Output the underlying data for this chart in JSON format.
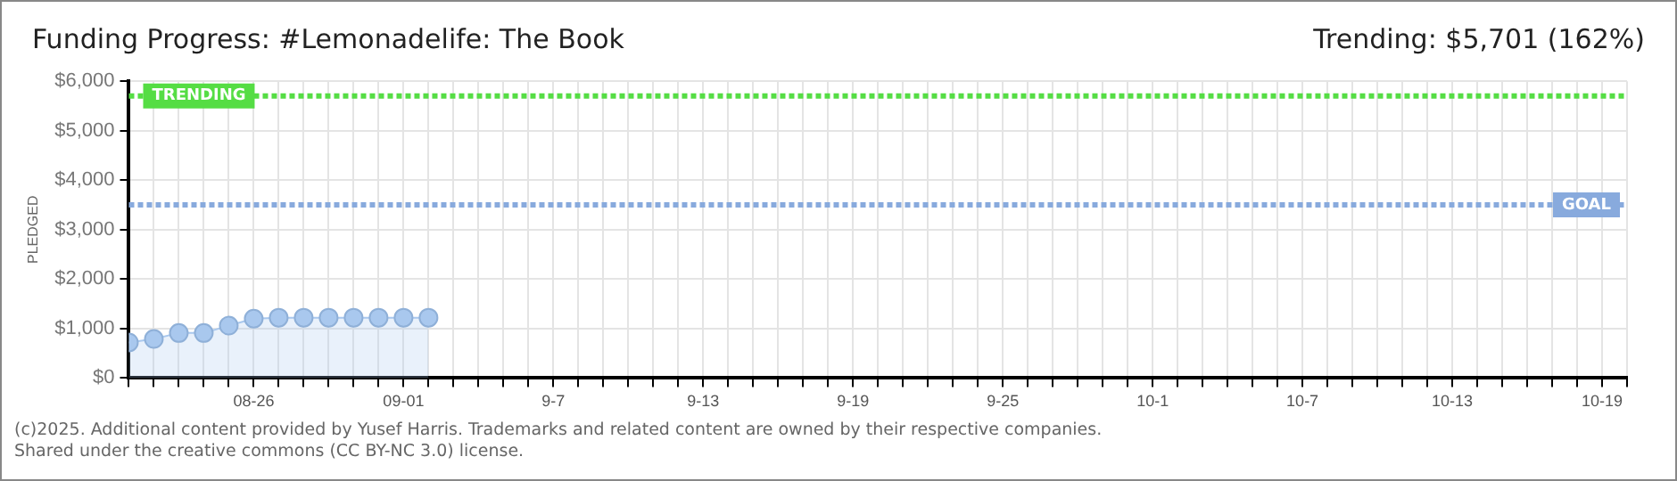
{
  "chart_data": {
    "type": "area",
    "title": "Funding Progress: #Lemonadelife: The Book",
    "subtitle": "Trending: $5,701 (162%)",
    "ylabel": "PLEDGED",
    "annotations": [
      "(c)2025. Additional content provided by Yusef Harris. Trademarks and related content are owned by their respective companies.",
      "Shared under the creative commons (CC BY-NC 3.0) license."
    ],
    "x": [
      "--08-21",
      "--08-22",
      "--08-23",
      "--08-24",
      "--08-25",
      "--08-26",
      "--08-27",
      "--08-28",
      "--08-29",
      "--08-30",
      "--08-31",
      "--09-01",
      "--09-02"
    ],
    "series": [
      {
        "color": "#a9c8ee",
        "values": [
          720,
          790,
          910,
          910,
          1060,
          1200,
          1220,
          1220,
          1220,
          1220,
          1220,
          1220,
          1220
        ]
      }
    ],
    "marker": "circle",
    "grid": true,
    "legend": false,
    "ylim": [
      0,
      6000
    ],
    "yticks": [
      {
        "value": 0,
        "label": "$0"
      },
      {
        "value": 1000,
        "label": "$1,000"
      },
      {
        "value": 2000,
        "label": "$2,000"
      },
      {
        "value": 3000,
        "label": "$3,000"
      },
      {
        "value": 4000,
        "label": "$4,000"
      },
      {
        "value": 5000,
        "label": "$5,000"
      },
      {
        "value": 6000,
        "label": "$6,000"
      }
    ],
    "xlim": [
      "--08-21",
      "--10-20"
    ],
    "xticks": [
      {
        "value": "--08-21",
        "label": null
      },
      {
        "value": "--08-22",
        "label": null
      },
      {
        "value": "--08-23",
        "label": null
      },
      {
        "value": "--08-24",
        "label": null
      },
      {
        "value": "--08-25",
        "label": null
      },
      {
        "value": "--08-26",
        "label": "08-26"
      },
      {
        "value": "--08-27",
        "label": null
      },
      {
        "value": "--08-28",
        "label": null
      },
      {
        "value": "--08-29",
        "label": null
      },
      {
        "value": "--08-30",
        "label": null
      },
      {
        "value": "--08-31",
        "label": null
      },
      {
        "value": "--09-01",
        "label": "09-01"
      },
      {
        "value": "--09-02",
        "label": null
      },
      {
        "value": "--09-03",
        "label": null
      },
      {
        "value": "--09-04",
        "label": null
      },
      {
        "value": "--09-05",
        "label": null
      },
      {
        "value": "--09-06",
        "label": null
      },
      {
        "value": "--09-07",
        "label": "9-7"
      },
      {
        "value": "--09-08",
        "label": null
      },
      {
        "value": "--09-09",
        "label": null
      },
      {
        "value": "--09-10",
        "label": null
      },
      {
        "value": "--09-11",
        "label": null
      },
      {
        "value": "--09-12",
        "label": null
      },
      {
        "value": "--09-13",
        "label": "9-13"
      },
      {
        "value": "--09-14",
        "label": null
      },
      {
        "value": "--09-15",
        "label": null
      },
      {
        "value": "--09-16",
        "label": null
      },
      {
        "value": "--09-17",
        "label": null
      },
      {
        "value": "--09-18",
        "label": null
      },
      {
        "value": "--09-19",
        "label": "9-19"
      },
      {
        "value": "--09-20",
        "label": null
      },
      {
        "value": "--09-21",
        "label": null
      },
      {
        "value": "--09-22",
        "label": null
      },
      {
        "value": "--09-23",
        "label": null
      },
      {
        "value": "--09-24",
        "label": null
      },
      {
        "value": "--09-25",
        "label": "9-25"
      },
      {
        "value": "--09-26",
        "label": null
      },
      {
        "value": "--09-27",
        "label": null
      },
      {
        "value": "--09-28",
        "label": null
      },
      {
        "value": "--09-29",
        "label": null
      },
      {
        "value": "--09-30",
        "label": null
      },
      {
        "value": "--10-01",
        "label": "10-1"
      },
      {
        "value": "--10-02",
        "label": null
      },
      {
        "value": "--10-03",
        "label": null
      },
      {
        "value": "--10-04",
        "label": null
      },
      {
        "value": "--10-05",
        "label": null
      },
      {
        "value": "--10-06",
        "label": null
      },
      {
        "value": "--10-07",
        "label": "10-7"
      },
      {
        "value": "--10-08",
        "label": null
      },
      {
        "value": "--10-09",
        "label": null
      },
      {
        "value": "--10-10",
        "label": null
      },
      {
        "value": "--10-11",
        "label": null
      },
      {
        "value": "--10-12",
        "label": null
      },
      {
        "value": "--10-13",
        "label": "10-13"
      },
      {
        "value": "--10-14",
        "label": null
      },
      {
        "value": "--10-15",
        "label": null
      },
      {
        "value": "--10-16",
        "label": null
      },
      {
        "value": "--10-17",
        "label": null
      },
      {
        "value": "--10-18",
        "label": null
      },
      {
        "value": "--10-19",
        "label": "10-19"
      },
      {
        "value": "--10-20",
        "label": null
      }
    ],
    "ref_lines": [
      {
        "axis": "y",
        "value": 5701,
        "label": "TRENDING",
        "color": "#55dd44",
        "line_style": "dotted"
      },
      {
        "axis": "y",
        "value": 3500,
        "label": "GOAL",
        "color": "#88aadd",
        "line_style": "dotted"
      }
    ]
  }
}
